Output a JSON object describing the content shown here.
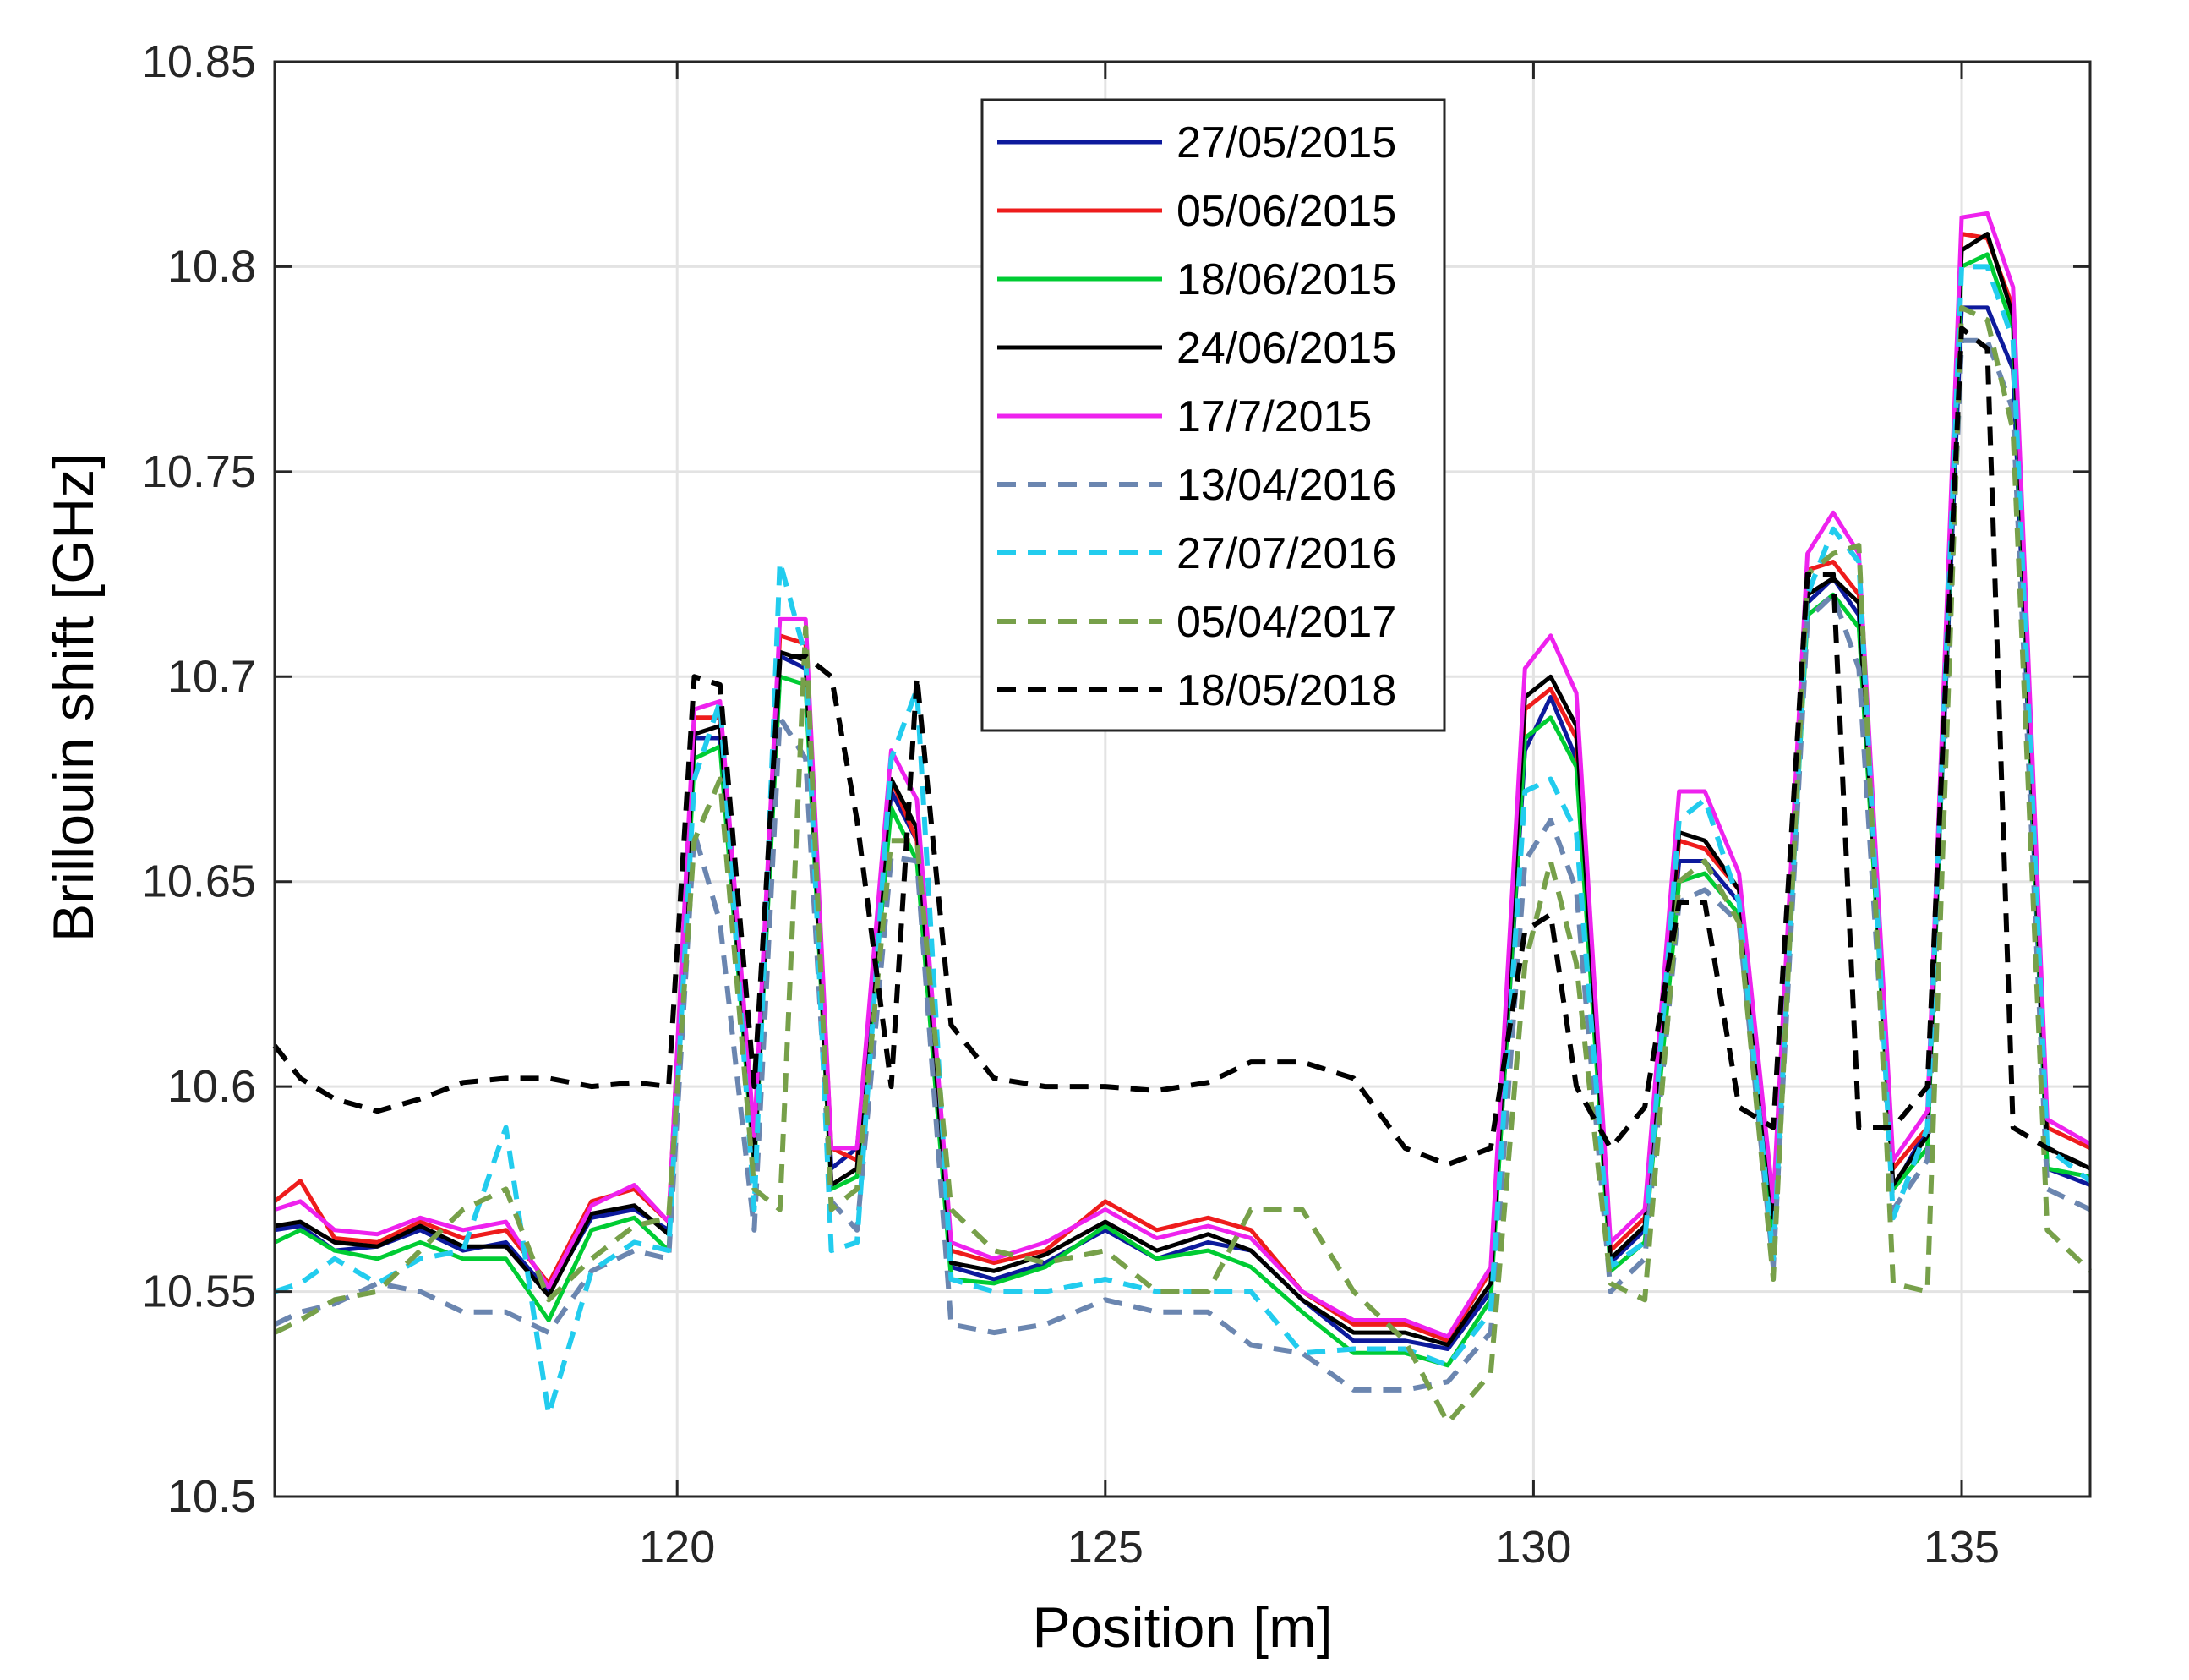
{
  "chart_data": {
    "type": "line",
    "title": "",
    "xlabel": "Position [m]",
    "ylabel": "Brillouin shift [GHz]",
    "xlim": [
      115.3,
      136.5
    ],
    "ylim": [
      10.5,
      10.85
    ],
    "xticks": [
      120,
      125,
      130,
      135
    ],
    "xtick_labels": [
      "120",
      "125",
      "130",
      "135"
    ],
    "yticks": [
      10.5,
      10.55,
      10.6,
      10.65,
      10.7,
      10.75,
      10.8,
      10.85
    ],
    "ytick_labels": [
      "10.5",
      "10.55",
      "10.6",
      "10.65",
      "10.7",
      "10.75",
      "10.8",
      "10.85"
    ],
    "grid": true,
    "legend_position": "top-center",
    "x": [
      115.3,
      115.6,
      116.0,
      116.5,
      117.0,
      117.5,
      118.0,
      118.5,
      119.0,
      119.5,
      119.9,
      120.2,
      120.5,
      120.9,
      121.2,
      121.5,
      121.8,
      122.1,
      122.5,
      122.8,
      123.2,
      123.7,
      124.3,
      125.0,
      125.6,
      126.2,
      126.7,
      127.3,
      127.9,
      128.5,
      129.0,
      129.5,
      129.9,
      130.2,
      130.5,
      130.9,
      131.3,
      131.7,
      132.0,
      132.4,
      132.8,
      133.2,
      133.5,
      133.8,
      134.2,
      134.6,
      135.0,
      135.3,
      135.6,
      136.0,
      136.5
    ],
    "series": [
      {
        "name": "27/05/2015",
        "color": "#0d1a9c",
        "dash": "solid",
        "values": [
          10.565,
          10.566,
          10.56,
          10.561,
          10.565,
          10.56,
          10.562,
          10.55,
          10.568,
          10.57,
          10.565,
          10.685,
          10.685,
          10.58,
          10.705,
          10.702,
          10.58,
          10.585,
          10.672,
          10.66,
          10.556,
          10.553,
          10.557,
          10.565,
          10.558,
          10.562,
          10.56,
          10.548,
          10.538,
          10.538,
          10.536,
          10.55,
          10.682,
          10.695,
          10.68,
          10.557,
          10.565,
          10.655,
          10.655,
          10.645,
          10.565,
          10.718,
          10.724,
          10.715,
          10.575,
          10.59,
          10.79,
          10.79,
          10.775,
          10.58,
          10.576
        ]
      },
      {
        "name": "05/06/2015",
        "color": "#ee1c1c",
        "dash": "solid",
        "values": [
          10.572,
          10.577,
          10.563,
          10.562,
          10.567,
          10.563,
          10.565,
          10.552,
          10.572,
          10.575,
          10.567,
          10.69,
          10.69,
          10.585,
          10.71,
          10.708,
          10.585,
          10.582,
          10.675,
          10.66,
          10.56,
          10.557,
          10.56,
          10.572,
          10.565,
          10.568,
          10.565,
          10.55,
          10.542,
          10.542,
          10.538,
          10.555,
          10.692,
          10.697,
          10.685,
          10.56,
          10.568,
          10.66,
          10.658,
          10.648,
          10.57,
          10.726,
          10.728,
          10.72,
          10.58,
          10.59,
          10.808,
          10.807,
          10.79,
          10.59,
          10.585
        ]
      },
      {
        "name": "18/06/2015",
        "color": "#00cc33",
        "dash": "solid",
        "values": [
          10.562,
          10.565,
          10.56,
          10.558,
          10.562,
          10.558,
          10.558,
          10.543,
          10.565,
          10.568,
          10.56,
          10.68,
          10.683,
          10.58,
          10.7,
          10.698,
          10.575,
          10.578,
          10.668,
          10.655,
          10.553,
          10.552,
          10.556,
          10.566,
          10.558,
          10.56,
          10.556,
          10.545,
          10.535,
          10.535,
          10.532,
          10.548,
          10.685,
          10.69,
          10.678,
          10.555,
          10.562,
          10.65,
          10.652,
          10.642,
          10.562,
          10.715,
          10.72,
          10.712,
          10.575,
          10.585,
          10.8,
          10.803,
          10.785,
          10.58,
          10.578
        ]
      },
      {
        "name": "24/06/2015",
        "color": "#000000",
        "dash": "solid",
        "values": [
          10.566,
          10.567,
          10.562,
          10.561,
          10.566,
          10.561,
          10.561,
          10.549,
          10.569,
          10.571,
          10.564,
          10.686,
          10.688,
          10.582,
          10.706,
          10.704,
          10.576,
          10.58,
          10.675,
          10.663,
          10.557,
          10.555,
          10.559,
          10.567,
          10.56,
          10.564,
          10.56,
          10.548,
          10.54,
          10.54,
          10.537,
          10.552,
          10.695,
          10.7,
          10.688,
          10.558,
          10.566,
          10.662,
          10.66,
          10.648,
          10.568,
          10.72,
          10.724,
          10.718,
          10.576,
          10.588,
          10.804,
          10.808,
          10.788,
          10.585,
          10.58
        ]
      },
      {
        "name": "17/7/2015",
        "color": "#ee22ee",
        "dash": "solid",
        "values": [
          10.57,
          10.572,
          10.565,
          10.564,
          10.568,
          10.565,
          10.567,
          10.551,
          10.571,
          10.576,
          10.567,
          10.692,
          10.694,
          10.588,
          10.714,
          10.714,
          10.585,
          10.585,
          10.682,
          10.67,
          10.562,
          10.558,
          10.562,
          10.57,
          10.563,
          10.566,
          10.563,
          10.55,
          10.543,
          10.543,
          10.539,
          10.556,
          10.702,
          10.71,
          10.696,
          10.562,
          10.57,
          10.672,
          10.672,
          10.652,
          10.572,
          10.73,
          10.74,
          10.73,
          10.582,
          10.594,
          10.812,
          10.813,
          10.795,
          10.592,
          10.586
        ]
      },
      {
        "name": "13/04/2016",
        "color": "#6b86b0",
        "dash": "dashed",
        "values": [
          10.542,
          10.545,
          10.547,
          10.552,
          10.55,
          10.545,
          10.545,
          10.54,
          10.555,
          10.56,
          10.558,
          10.662,
          10.64,
          10.565,
          10.69,
          10.68,
          10.572,
          10.565,
          10.656,
          10.655,
          10.542,
          10.54,
          10.542,
          10.548,
          10.545,
          10.545,
          10.537,
          10.535,
          10.526,
          10.526,
          10.528,
          10.54,
          10.655,
          10.665,
          10.648,
          10.55,
          10.558,
          10.645,
          10.648,
          10.64,
          10.556,
          10.714,
          10.72,
          10.702,
          10.57,
          10.582,
          10.782,
          10.782,
          10.765,
          10.575,
          10.57
        ]
      },
      {
        "name": "27/07/2016",
        "color": "#22ccee",
        "dash": "dashed",
        "values": [
          10.55,
          10.552,
          10.558,
          10.552,
          10.558,
          10.56,
          10.59,
          10.52,
          10.555,
          10.562,
          10.56,
          10.675,
          10.694,
          10.57,
          10.728,
          10.705,
          10.56,
          10.562,
          10.68,
          10.697,
          10.553,
          10.55,
          10.55,
          10.553,
          10.55,
          10.55,
          10.55,
          10.535,
          10.536,
          10.536,
          10.532,
          10.545,
          10.672,
          10.675,
          10.662,
          10.556,
          10.562,
          10.665,
          10.67,
          10.645,
          10.558,
          10.72,
          10.736,
          10.728,
          10.568,
          10.59,
          10.8,
          10.8,
          10.782,
          10.585,
          10.577
        ]
      },
      {
        "name": "05/04/2017",
        "color": "#77a04a",
        "dash": "dashed",
        "values": [
          10.54,
          10.543,
          10.548,
          10.55,
          10.56,
          10.57,
          10.575,
          10.548,
          10.558,
          10.566,
          10.568,
          10.66,
          10.675,
          10.575,
          10.57,
          10.712,
          10.57,
          10.575,
          10.66,
          10.66,
          10.57,
          10.56,
          10.557,
          10.56,
          10.55,
          10.55,
          10.57,
          10.57,
          10.55,
          10.538,
          10.518,
          10.53,
          10.63,
          10.655,
          10.63,
          10.552,
          10.548,
          10.65,
          10.655,
          10.64,
          10.553,
          10.725,
          10.73,
          10.732,
          10.552,
          10.55,
          10.79,
          10.787,
          10.76,
          10.565,
          10.555
        ]
      },
      {
        "name": "18/05/2018",
        "color": "#000000",
        "dash": "dashed",
        "values": [
          10.61,
          10.602,
          10.597,
          10.594,
          10.597,
          10.601,
          10.602,
          10.602,
          10.6,
          10.601,
          10.6,
          10.7,
          10.698,
          10.6,
          10.705,
          10.705,
          10.7,
          10.665,
          10.6,
          10.7,
          10.615,
          10.602,
          10.6,
          10.6,
          10.599,
          10.601,
          10.606,
          10.606,
          10.602,
          10.585,
          10.581,
          10.585,
          10.638,
          10.642,
          10.6,
          10.585,
          10.595,
          10.645,
          10.645,
          10.595,
          10.59,
          10.725,
          10.725,
          10.59,
          10.59,
          10.6,
          10.785,
          10.78,
          10.59,
          10.585,
          10.58
        ]
      }
    ]
  }
}
